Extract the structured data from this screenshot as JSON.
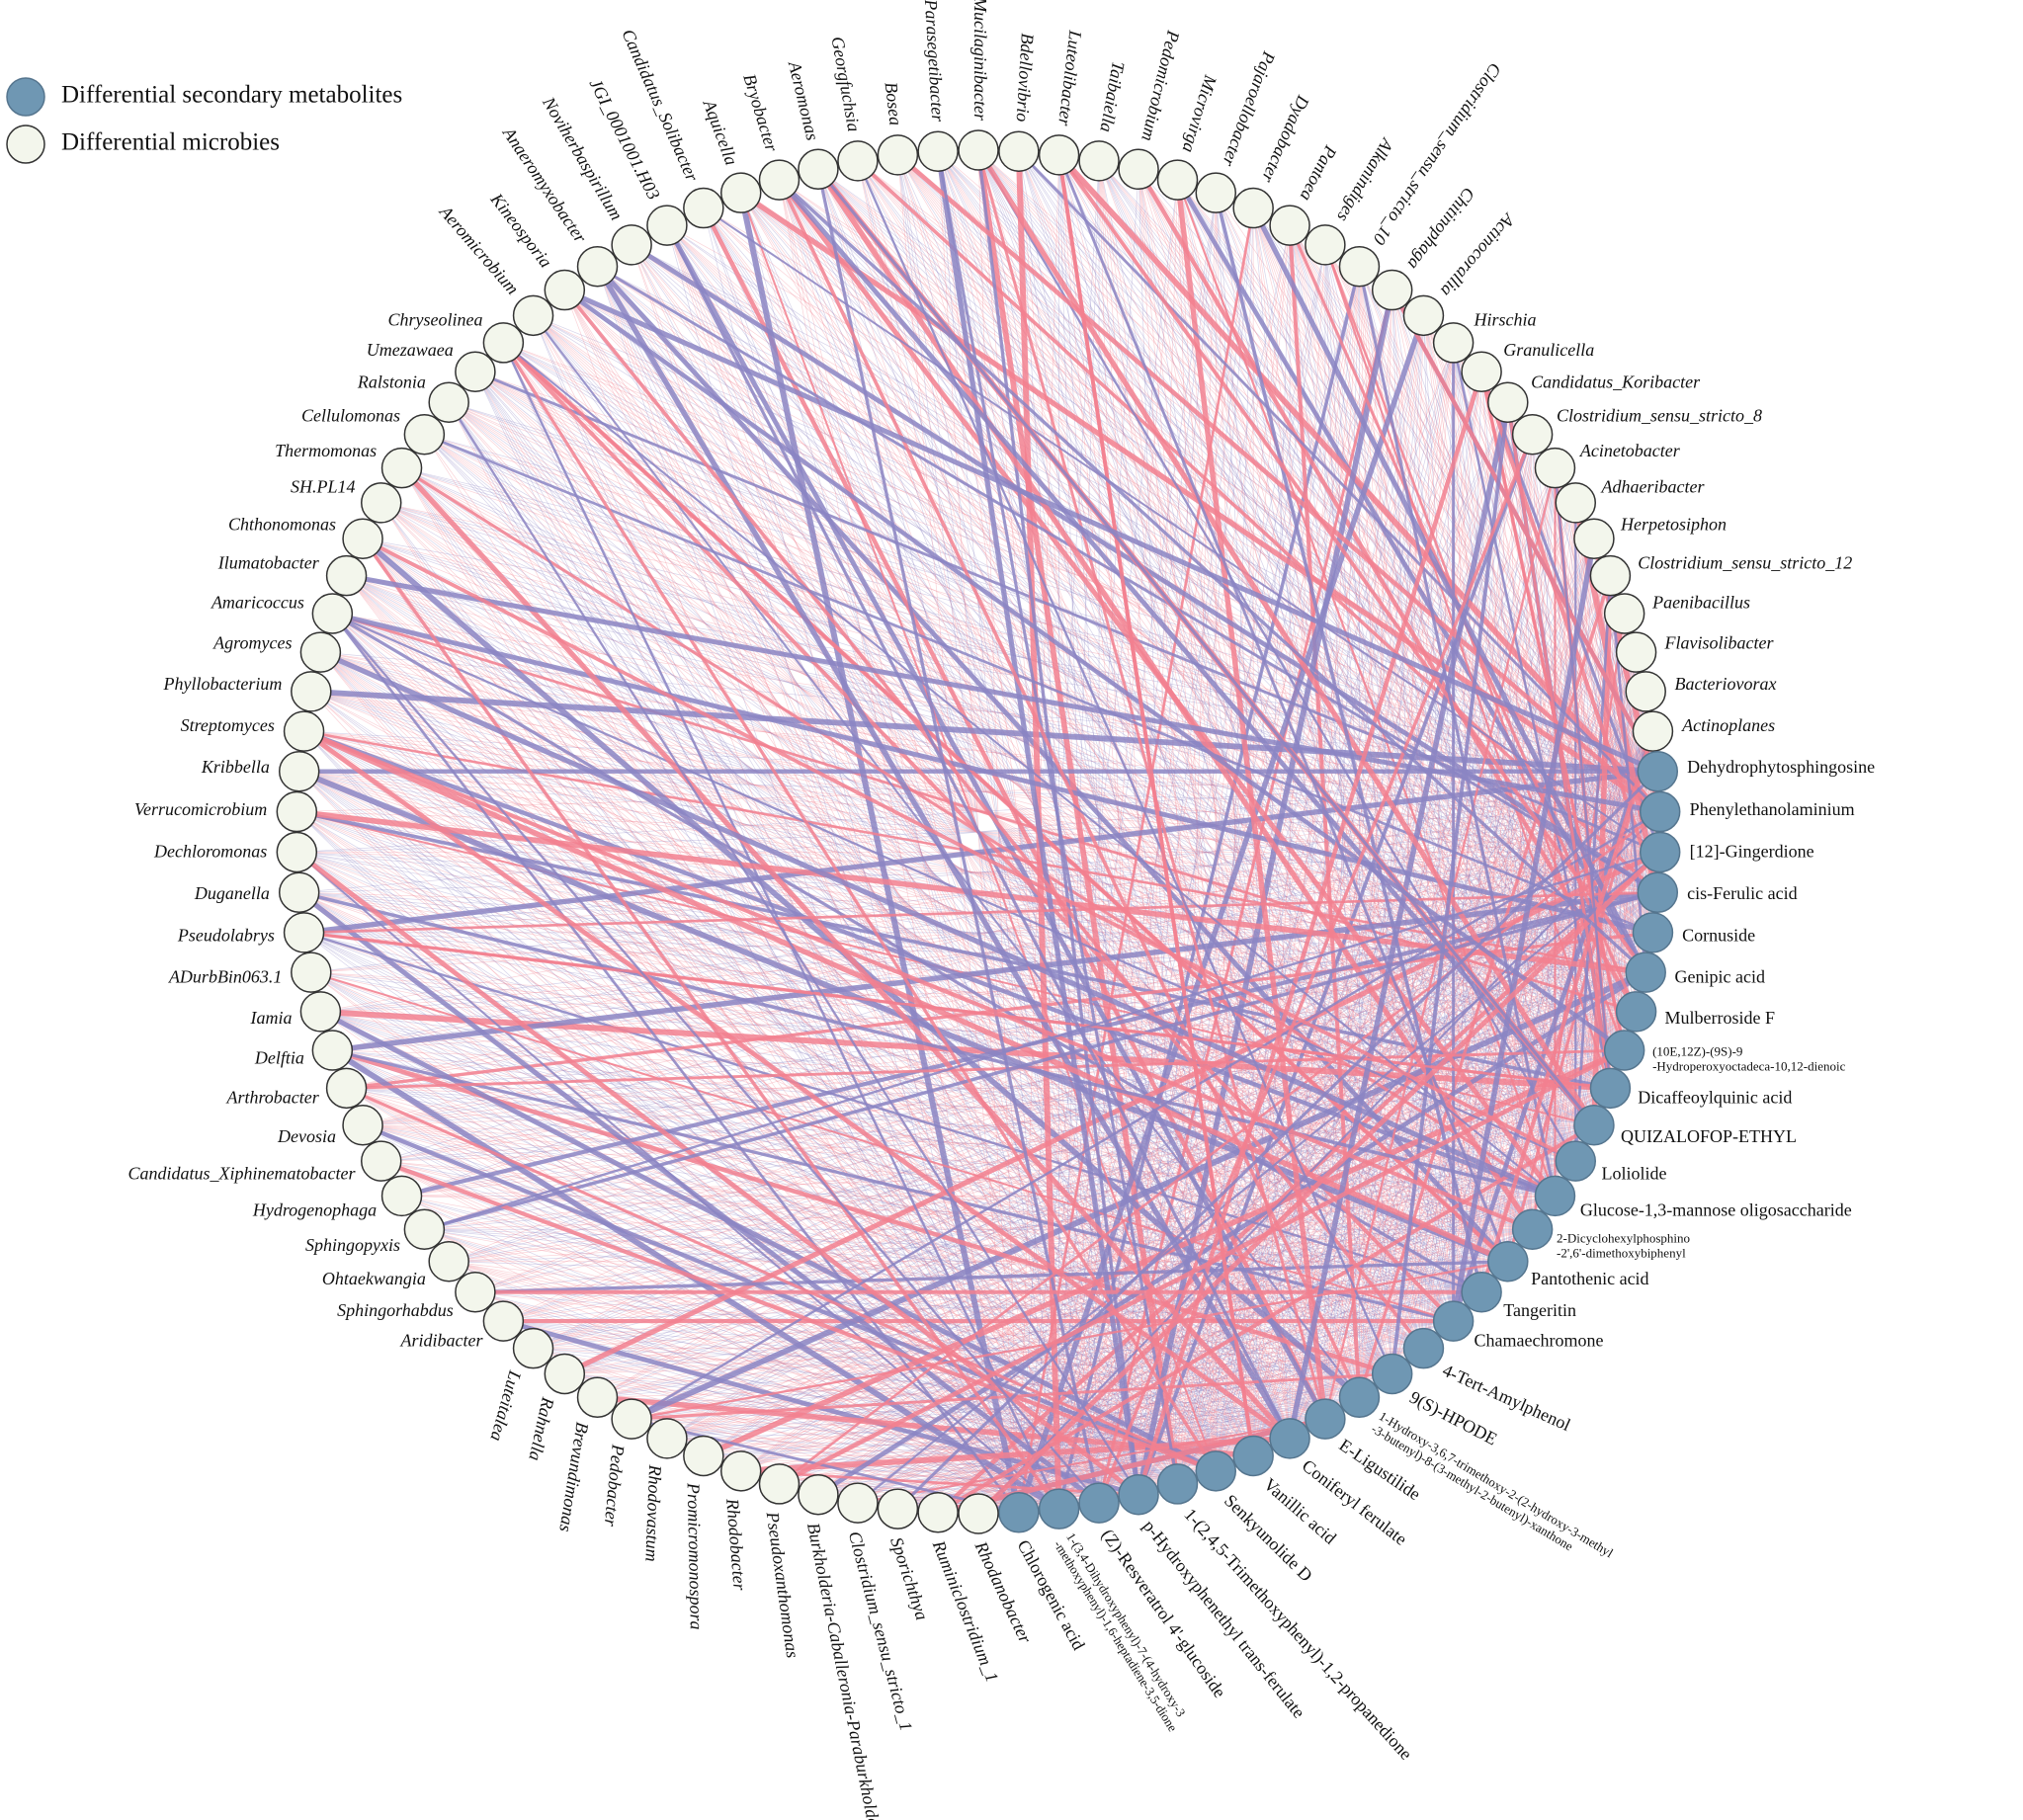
{
  "legend": [
    {
      "label": "Differential secondary metabolites",
      "type": "metabolite"
    },
    {
      "label": "Differential microbies",
      "type": "microbe"
    }
  ],
  "nodes": [
    {
      "label": "Mucilaginibacter",
      "type": "microbe"
    },
    {
      "label": "Bdellovibrio",
      "type": "microbe"
    },
    {
      "label": "Luteolibacter",
      "type": "microbe"
    },
    {
      "label": "Taibaiella",
      "type": "microbe"
    },
    {
      "label": "Pedomicrobium",
      "type": "microbe"
    },
    {
      "label": "Microvirga",
      "type": "microbe"
    },
    {
      "label": "Pajaroellobacter",
      "type": "microbe"
    },
    {
      "label": "Dyadobacter",
      "type": "microbe"
    },
    {
      "label": "Pantoea",
      "type": "microbe"
    },
    {
      "label": "Alkanindiges",
      "type": "microbe"
    },
    {
      "label": "Clostridium_sensu_stricto_10",
      "type": "microbe"
    },
    {
      "label": "Chitinophaga",
      "type": "microbe"
    },
    {
      "label": "Actinocorallia",
      "type": "microbe"
    },
    {
      "label": "Hirschia",
      "type": "microbe"
    },
    {
      "label": "Granulicella",
      "type": "microbe"
    },
    {
      "label": "Candidatus_Koribacter",
      "type": "microbe"
    },
    {
      "label": "Clostridium_sensu_stricto_8",
      "type": "microbe"
    },
    {
      "label": "Acinetobacter",
      "type": "microbe"
    },
    {
      "label": "Adhaeribacter",
      "type": "microbe"
    },
    {
      "label": "Herpetosiphon",
      "type": "microbe"
    },
    {
      "label": "Clostridium_sensu_stricto_12",
      "type": "microbe"
    },
    {
      "label": "Paenibacillus",
      "type": "microbe"
    },
    {
      "label": "Flavisolibacter",
      "type": "microbe"
    },
    {
      "label": "Bacteriovorax",
      "type": "microbe"
    },
    {
      "label": "Actinoplanes",
      "type": "microbe"
    },
    {
      "label": "Dehydrophytosphingosine",
      "type": "metabolite"
    },
    {
      "label": "Phenylethanolaminium",
      "type": "metabolite"
    },
    {
      "label": "[12]-Gingerdione",
      "type": "metabolite"
    },
    {
      "label": "cis-Ferulic acid",
      "type": "metabolite"
    },
    {
      "label": "Cornuside",
      "type": "metabolite"
    },
    {
      "label": "Genipic acid",
      "type": "metabolite"
    },
    {
      "label": "Mulberroside F",
      "type": "metabolite"
    },
    {
      "label": "(10E,12Z)-(9S)-9-Hydroperoxyoctadeca-10,12-dienoic",
      "type": "metabolite"
    },
    {
      "label": "Dicaffeoylquinic acid",
      "type": "metabolite"
    },
    {
      "label": "QUIZALOFOP-ETHYL",
      "type": "metabolite"
    },
    {
      "label": "Loliolide",
      "type": "metabolite"
    },
    {
      "label": "Glucose-1,3-mannose oligosaccharide",
      "type": "metabolite"
    },
    {
      "label": "2-Dicyclohexylphosphino-2',6'-dimethoxybiphenyl",
      "type": "metabolite"
    },
    {
      "label": "Pantothenic acid",
      "type": "metabolite"
    },
    {
      "label": "Tangeritin",
      "type": "metabolite"
    },
    {
      "label": "Chamaechromone",
      "type": "metabolite"
    },
    {
      "label": "4-Tert-Amylphenol",
      "type": "metabolite"
    },
    {
      "label": "9(S)-HPODE",
      "type": "metabolite"
    },
    {
      "label": "1-Hydroxy-3,6,7-trimethoxy-2-(2-hydroxy-3-methyl-3-butenyl)-8-(3-methyl-2-butenyl)-xanthone",
      "type": "metabolite"
    },
    {
      "label": "E-Ligustilide",
      "type": "metabolite"
    },
    {
      "label": "Coniferyl ferulate",
      "type": "metabolite"
    },
    {
      "label": "Vanillic acid",
      "type": "metabolite"
    },
    {
      "label": "Senkyunolide D",
      "type": "metabolite"
    },
    {
      "label": "1-(2,4,5-Trimethoxyphenyl)-1,2-propanedione",
      "type": "metabolite"
    },
    {
      "label": "p-Hydroxyphenethyl trans-ferulate",
      "type": "metabolite"
    },
    {
      "label": "(Z)-Resveratrol 4'-glucoside",
      "type": "metabolite"
    },
    {
      "label": "1-(3,4-Dihydroxyphenyl)-7-(4-hydroxy-3-methoxyphenyl)-1,6-heptadiene-3,5-dione",
      "type": "metabolite"
    },
    {
      "label": "Chlorogenic acid",
      "type": "metabolite"
    },
    {
      "label": "Rhodanobacter",
      "type": "microbe"
    },
    {
      "label": "Ruminiclostridium_1",
      "type": "microbe"
    },
    {
      "label": "Sporichthya",
      "type": "microbe"
    },
    {
      "label": "Clostridium_sensu_stricto_1",
      "type": "microbe"
    },
    {
      "label": "Burkholderia-Caballeronia-Paraburkholderia",
      "type": "microbe"
    },
    {
      "label": "Pseudoxanthomonas",
      "type": "microbe"
    },
    {
      "label": "Rhodobacter",
      "type": "microbe"
    },
    {
      "label": "Promicromonospora",
      "type": "microbe"
    },
    {
      "label": "Rhodovastum",
      "type": "microbe"
    },
    {
      "label": "Pedobacter",
      "type": "microbe"
    },
    {
      "label": "Brevundimonas",
      "type": "microbe"
    },
    {
      "label": "Rahnella",
      "type": "microbe"
    },
    {
      "label": "Luteitalea",
      "type": "microbe"
    },
    {
      "label": "Aridibacter",
      "type": "microbe"
    },
    {
      "label": "Sphingorhabdus",
      "type": "microbe"
    },
    {
      "label": "Ohtaekwangia",
      "type": "microbe"
    },
    {
      "label": "Sphingopyxis",
      "type": "microbe"
    },
    {
      "label": "Hydrogenophaga",
      "type": "microbe"
    },
    {
      "label": "Candidatus_Xiphinematobacter",
      "type": "microbe"
    },
    {
      "label": "Devosia",
      "type": "microbe"
    },
    {
      "label": "Arthrobacter",
      "type": "microbe"
    },
    {
      "label": "Delftia",
      "type": "microbe"
    },
    {
      "label": "Iamia",
      "type": "microbe"
    },
    {
      "label": "ADurbBin063.1",
      "type": "microbe"
    },
    {
      "label": "Pseudolabrys",
      "type": "microbe"
    },
    {
      "label": "Duganella",
      "type": "microbe"
    },
    {
      "label": "Dechloromonas",
      "type": "microbe"
    },
    {
      "label": "Verrucomicrobium",
      "type": "microbe"
    },
    {
      "label": "Kribbella",
      "type": "microbe"
    },
    {
      "label": "Streptomyces",
      "type": "microbe"
    },
    {
      "label": "Phyllobacterium",
      "type": "microbe"
    },
    {
      "label": "Agromyces",
      "type": "microbe"
    },
    {
      "label": "Amaricoccus",
      "type": "microbe"
    },
    {
      "label": "Ilumatobacter",
      "type": "microbe"
    },
    {
      "label": "Chthonomonas",
      "type": "microbe"
    },
    {
      "label": "SH.PL14",
      "type": "microbe"
    },
    {
      "label": "Thermomonas",
      "type": "microbe"
    },
    {
      "label": "Cellulomonas",
      "type": "microbe"
    },
    {
      "label": "Ralstonia",
      "type": "microbe"
    },
    {
      "label": "Umezawaea",
      "type": "microbe"
    },
    {
      "label": "Chryseolinea",
      "type": "microbe"
    },
    {
      "label": "Aeromicrobium",
      "type": "microbe"
    },
    {
      "label": "Kineosporia",
      "type": "microbe"
    },
    {
      "label": "Anaeromyxobacter",
      "type": "microbe"
    },
    {
      "label": "Noviherbaspirillum",
      "type": "microbe"
    },
    {
      "label": "JGI_0001001.H03",
      "type": "microbe"
    },
    {
      "label": "Candidatus_Solibacter",
      "type": "microbe"
    },
    {
      "label": "Aquicella",
      "type": "microbe"
    },
    {
      "label": "Bryobacter",
      "type": "microbe"
    },
    {
      "label": "Aeromonas",
      "type": "microbe"
    },
    {
      "label": "Georgfuchsia",
      "type": "microbe"
    },
    {
      "label": "Bosea",
      "type": "microbe"
    },
    {
      "label": "Parasegetibacter",
      "type": "microbe"
    }
  ]
}
